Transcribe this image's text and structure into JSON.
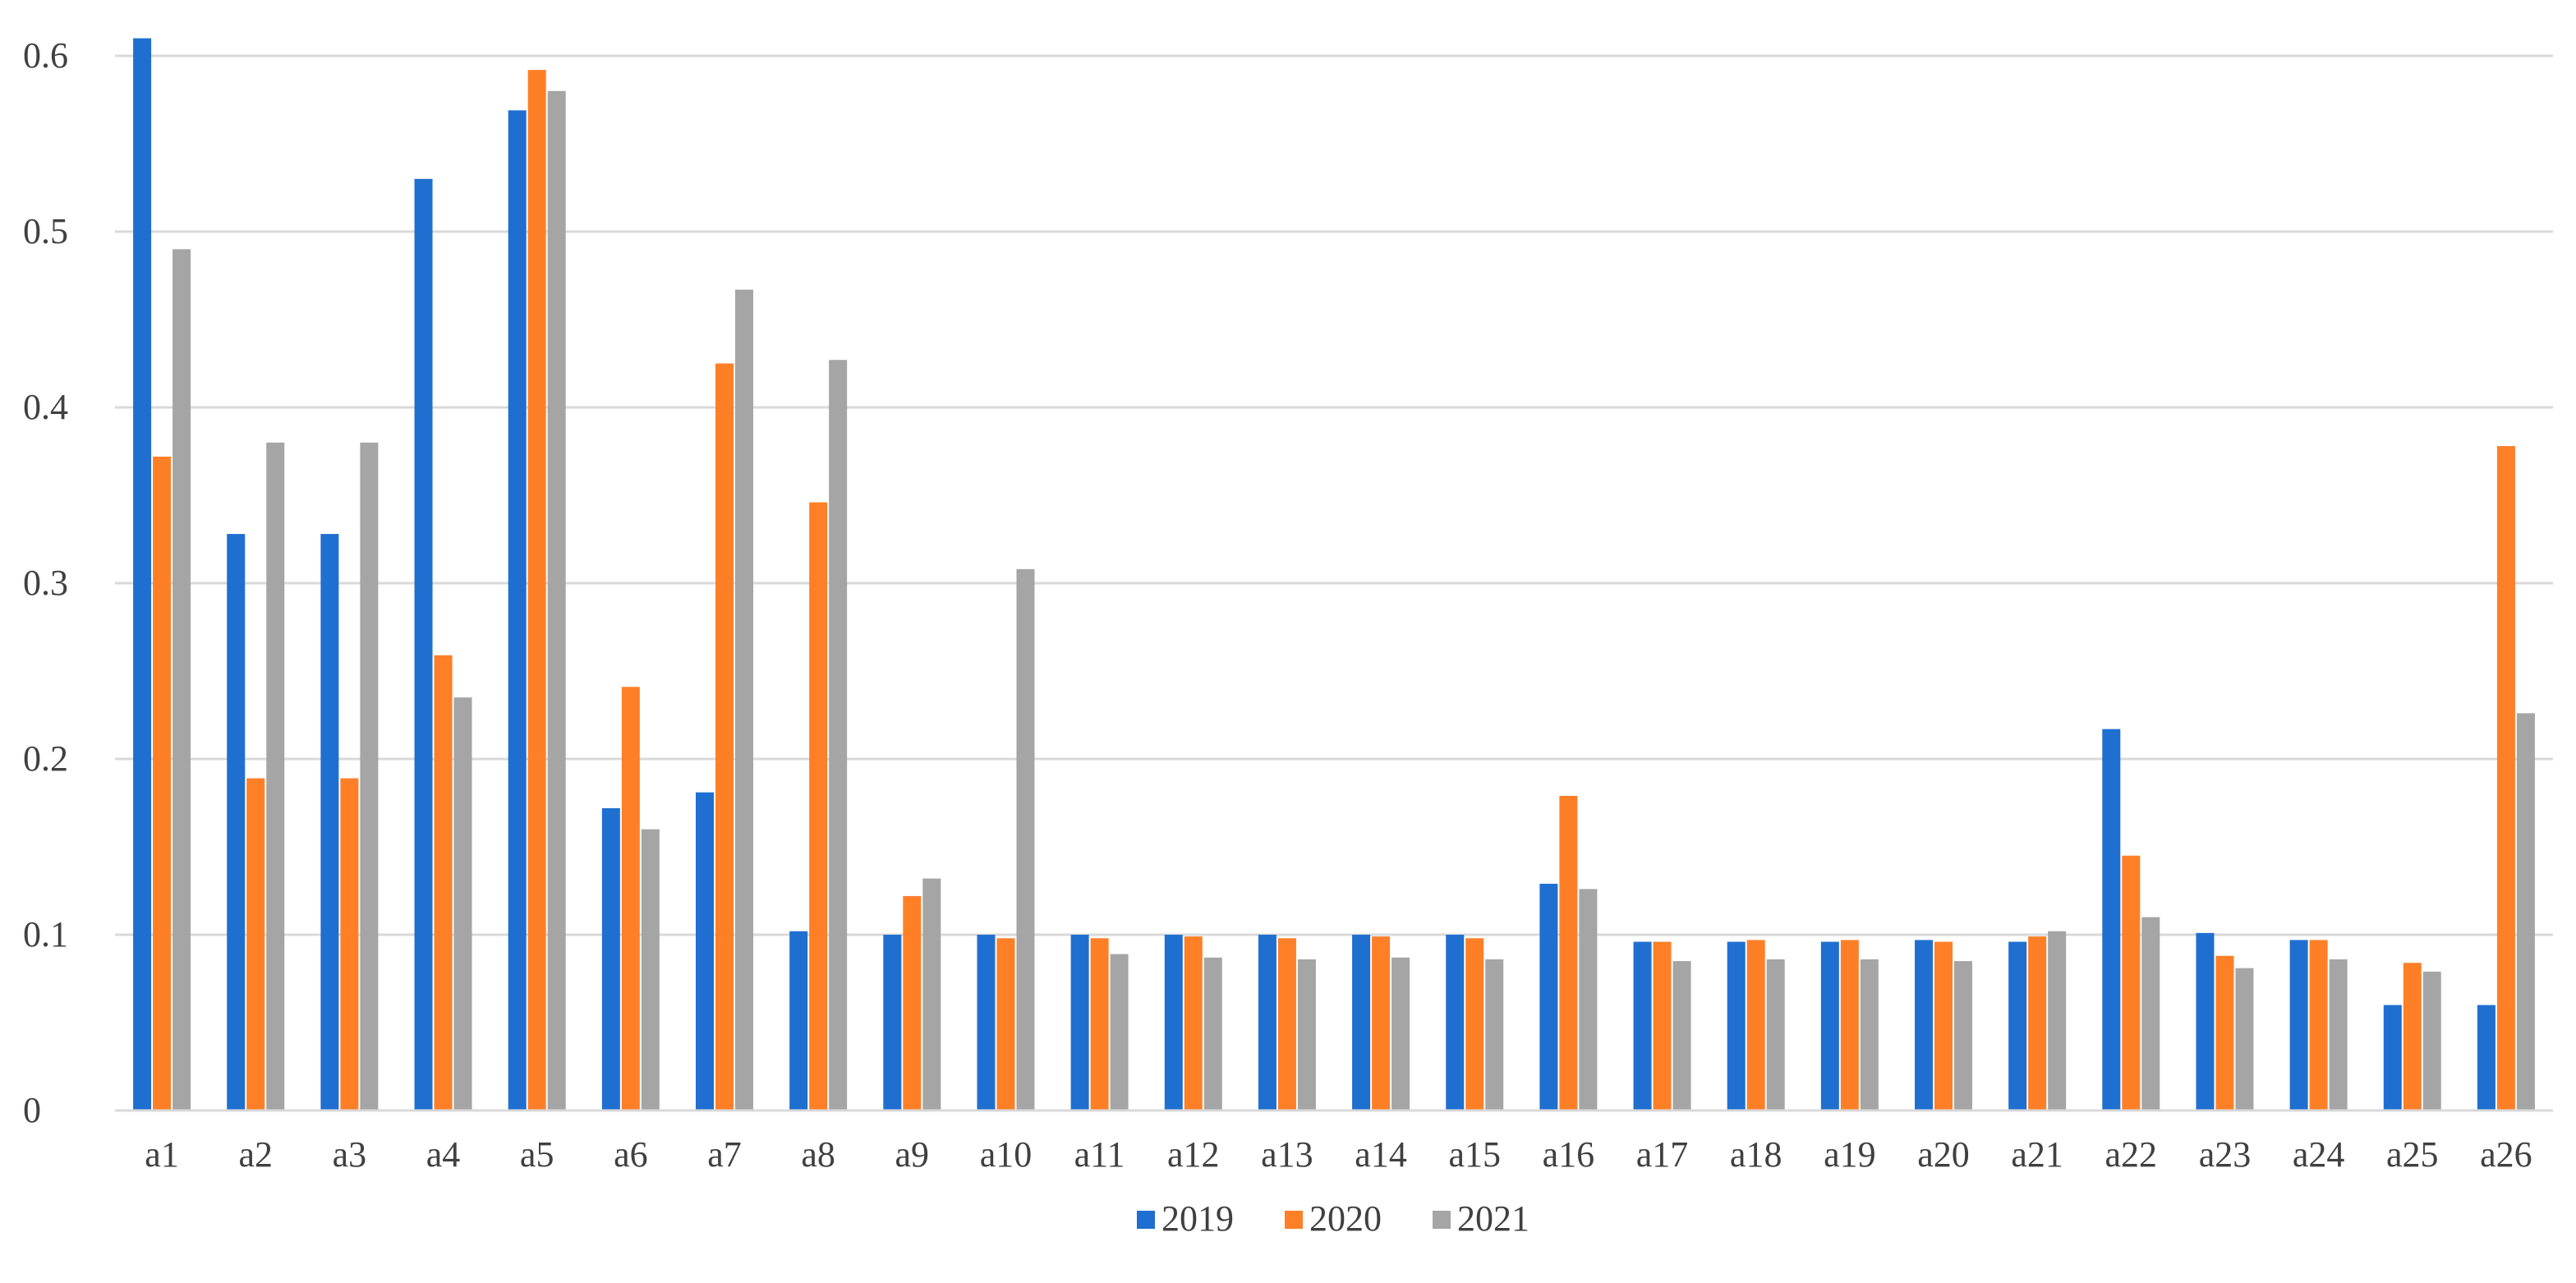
{
  "chart_data": {
    "type": "bar",
    "categories": [
      "a1",
      "a2",
      "a3",
      "a4",
      "a5",
      "a6",
      "a7",
      "a8",
      "a9",
      "a10",
      "a11",
      "a12",
      "a13",
      "a14",
      "a15",
      "a16",
      "a17",
      "a18",
      "a19",
      "a20",
      "a21",
      "a22",
      "a23",
      "a24",
      "a25",
      "a26"
    ],
    "series": [
      {
        "name": "2019",
        "color": "#1f6fd1",
        "values": [
          0.61,
          0.328,
          0.328,
          0.53,
          0.569,
          0.172,
          0.181,
          0.102,
          0.1,
          0.1,
          0.1,
          0.1,
          0.1,
          0.1,
          0.1,
          0.129,
          0.096,
          0.096,
          0.096,
          0.097,
          0.096,
          0.217,
          0.101,
          0.097,
          0.06,
          0.06
        ]
      },
      {
        "name": "2020",
        "color": "#ff7f27",
        "values": [
          0.372,
          0.189,
          0.189,
          0.259,
          0.592,
          0.241,
          0.425,
          0.346,
          0.122,
          0.098,
          0.098,
          0.099,
          0.098,
          0.099,
          0.098,
          0.179,
          0.096,
          0.097,
          0.097,
          0.096,
          0.099,
          0.145,
          0.088,
          0.097,
          0.084,
          0.378
        ]
      },
      {
        "name": "2021",
        "color": "#a5a5a5",
        "values": [
          0.49,
          0.38,
          0.38,
          0.235,
          0.58,
          0.16,
          0.467,
          0.427,
          0.132,
          0.308,
          0.089,
          0.087,
          0.086,
          0.087,
          0.086,
          0.126,
          0.085,
          0.086,
          0.086,
          0.085,
          0.102,
          0.11,
          0.081,
          0.086,
          0.079,
          0.226
        ]
      }
    ],
    "yticks": [
      "0",
      "0.1",
      "0.2",
      "0.3",
      "0.4",
      "0.5",
      "0.6"
    ],
    "ylim": [
      0,
      0.6
    ],
    "grid": true,
    "legend": "bottom-center",
    "title": "",
    "xlabel": "",
    "ylabel": ""
  }
}
